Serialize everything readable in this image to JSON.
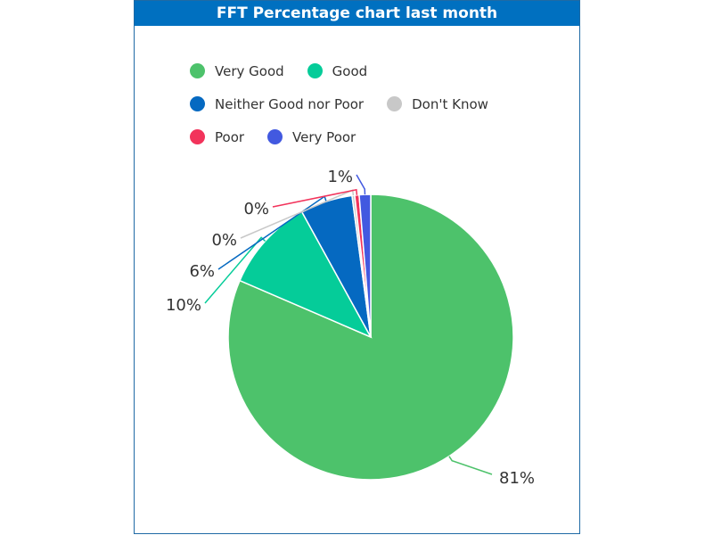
{
  "chart_data": {
    "type": "pie",
    "title": "FFT Percentage chart last month",
    "categories": [
      "Very Good",
      "Good",
      "Neither Good nor Poor",
      "Don't Know",
      "Poor",
      "Very Poor"
    ],
    "values": [
      81.4,
      10.5,
      5.9,
      0.3,
      0.5,
      1.3
    ],
    "data_labels": [
      "81%",
      "10%",
      "6%",
      "0%",
      "0%",
      "1%"
    ],
    "colors": [
      "#4dc26b",
      "#05cc99",
      "#0569c1",
      "#c8c8c8",
      "#f2335b",
      "#4259e0"
    ],
    "legend_position": "top"
  }
}
